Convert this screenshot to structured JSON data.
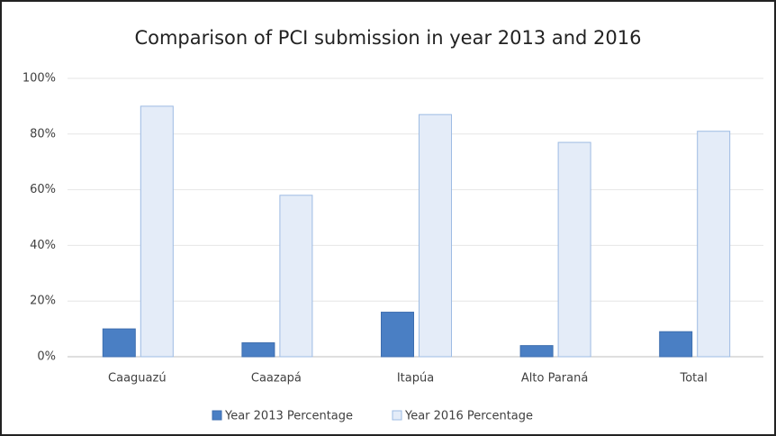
{
  "chart_data": {
    "type": "bar",
    "title": "Comparison of PCI submission in year 2013 and 2016",
    "categories": [
      "Caaguazú",
      "Caazapá",
      "Itapúa",
      "Alto Paraná",
      "Total"
    ],
    "series": [
      {
        "name": "Year 2013 Percentage",
        "color": "#4a7fc4",
        "values": [
          10,
          5,
          16,
          4,
          9
        ]
      },
      {
        "name": "Year 2016 Percentage",
        "color": "#e4ecf8",
        "values": [
          90,
          58,
          87,
          77,
          81
        ]
      }
    ],
    "ylim": [
      0,
      100
    ],
    "yticks": [
      {
        "value": 0,
        "label": "0%"
      },
      {
        "value": 20,
        "label": "20%"
      },
      {
        "value": 40,
        "label": "40%"
      },
      {
        "value": 60,
        "label": "60%"
      },
      {
        "value": 80,
        "label": "80%"
      },
      {
        "value": 100,
        "label": "100%"
      }
    ],
    "grid": true,
    "legend": "bottom"
  }
}
